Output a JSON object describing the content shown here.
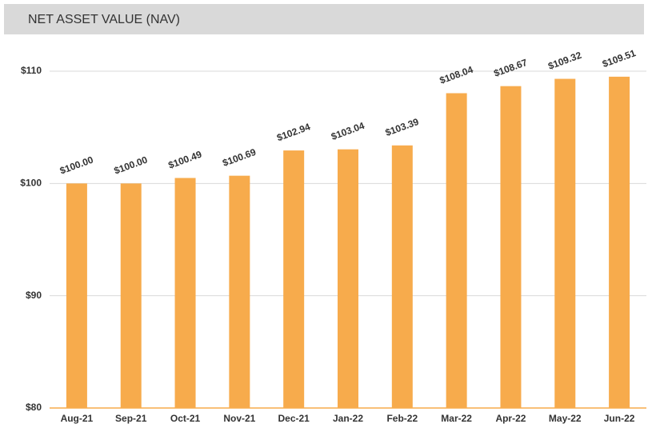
{
  "chart_data": {
    "type": "bar",
    "title": "NET ASSET VALUE (NAV)",
    "categories": [
      "Aug-21",
      "Sep-21",
      "Oct-21",
      "Nov-21",
      "Dec-21",
      "Jan-22",
      "Feb-22",
      "Mar-22",
      "Apr-22",
      "May-22",
      "Jun-22"
    ],
    "values": [
      100.0,
      100.0,
      100.49,
      100.69,
      102.94,
      103.04,
      103.39,
      108.04,
      108.67,
      109.32,
      109.51
    ],
    "value_labels": [
      "$100.00",
      "$100.00",
      "$100.49",
      "$100.69",
      "$102.94",
      "$103.04",
      "$103.39",
      "$108.04",
      "$108.67",
      "$109.32",
      "$109.51"
    ],
    "color": "#f7ab4c",
    "ylim": [
      80,
      110
    ],
    "yticks": [
      {
        "value": 80,
        "label": "$80"
      },
      {
        "value": 90,
        "label": "$90"
      },
      {
        "value": 100,
        "label": "$100"
      },
      {
        "value": 110,
        "label": "$110"
      }
    ],
    "grid": true
  }
}
